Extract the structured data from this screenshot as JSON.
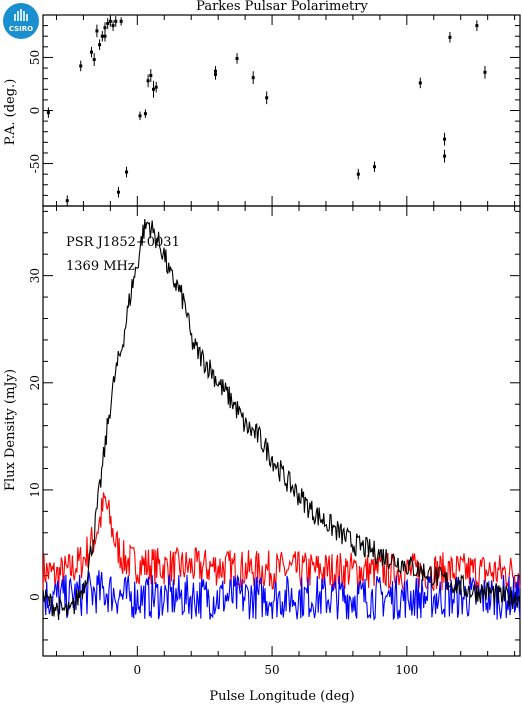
{
  "figure": {
    "title": "Parkes Pulsar Polarimetry",
    "logo_text": "CSIRO",
    "colors": {
      "total": "#000000",
      "linear": "#ff0000",
      "circular": "#0000ff",
      "logo_bg": "#1a8fcf"
    }
  },
  "chart_data": [
    {
      "type": "scatter",
      "panel": "position-angle",
      "title": "Parkes Pulsar Polarimetry",
      "xlabel": "",
      "ylabel": "P.A. (deg.)",
      "xlim": [
        -35,
        142
      ],
      "ylim": [
        -90,
        90
      ],
      "yticks": [
        -50,
        0,
        50
      ],
      "points": [
        [
          -33,
          -2,
          5
        ],
        [
          -26,
          -85,
          5
        ],
        [
          -21,
          42,
          5
        ],
        [
          -17,
          55,
          5
        ],
        [
          -16,
          48,
          6
        ],
        [
          -15,
          75,
          6
        ],
        [
          -14,
          62,
          5
        ],
        [
          -13,
          70,
          5
        ],
        [
          -12,
          70,
          5
        ],
        [
          -12,
          78,
          5
        ],
        [
          -11,
          82,
          5
        ],
        [
          -10,
          84,
          5
        ],
        [
          -9,
          80,
          5
        ],
        [
          -8,
          84,
          5
        ],
        [
          -7,
          -77,
          5
        ],
        [
          -6,
          84,
          4
        ],
        [
          -4,
          -58,
          5
        ],
        [
          1,
          -5,
          4
        ],
        [
          3,
          -3,
          4
        ],
        [
          4,
          28,
          6
        ],
        [
          5,
          33,
          6
        ],
        [
          6,
          20,
          8
        ],
        [
          7,
          22,
          5
        ],
        [
          29,
          37,
          5
        ],
        [
          29,
          34,
          5
        ],
        [
          37,
          49,
          5
        ],
        [
          43,
          31,
          6
        ],
        [
          48,
          12,
          6
        ],
        [
          82,
          -60,
          5
        ],
        [
          88,
          -53,
          5
        ],
        [
          105,
          26,
          5
        ],
        [
          114,
          -27,
          6
        ],
        [
          114,
          -43,
          6
        ],
        [
          116,
          69,
          5
        ],
        [
          126,
          80,
          5
        ],
        [
          129,
          36,
          6
        ]
      ]
    },
    {
      "type": "line",
      "panel": "profile",
      "xlabel": "Pulse Longitude (deg)",
      "ylabel": "Flux Density (mJy)",
      "xlim": [
        -35,
        142
      ],
      "ylim": [
        -5.5,
        36.5
      ],
      "xticks": [
        0,
        50,
        100
      ],
      "yticks": [
        0,
        10,
        20,
        30
      ],
      "annotations": [
        "PSR J1852−0031",
        "1369 MHz"
      ],
      "series": [
        {
          "key": "total",
          "x": [
            -35,
            -30,
            -25,
            -22,
            -20,
            -18,
            -16,
            -14,
            -12,
            -10,
            -8,
            -6,
            -4,
            -2,
            0,
            2,
            4,
            6,
            8,
            10,
            12,
            15,
            18,
            20,
            22,
            25,
            28,
            30,
            33,
            36,
            40,
            45,
            50,
            55,
            60,
            65,
            70,
            75,
            80,
            85,
            90,
            95,
            100,
            105,
            110,
            115,
            120,
            125,
            130,
            135,
            142
          ],
          "values": [
            0,
            -1,
            -1.5,
            0,
            1,
            3,
            6,
            10,
            14,
            18,
            21,
            23,
            26,
            29,
            31,
            34,
            35,
            34,
            33,
            32,
            30,
            29,
            27,
            24,
            23,
            22,
            21,
            20,
            19,
            18,
            16,
            15,
            13,
            11,
            9.5,
            8,
            7,
            6,
            5,
            4.5,
            4,
            3.5,
            3,
            2.5,
            2,
            1.5,
            1,
            0.5,
            0.5,
            0,
            0
          ]
        },
        {
          "key": "linear",
          "x": [
            -35,
            -30,
            -25,
            -20,
            -16,
            -14,
            -12,
            -10,
            -8,
            -5,
            0,
            5,
            10,
            20,
            30,
            40,
            60,
            80,
            100,
            120,
            142
          ],
          "values": [
            2.5,
            2.0,
            2.5,
            3.5,
            5.5,
            7.0,
            9.0,
            7.0,
            5.0,
            3.5,
            3.0,
            3.0,
            2.8,
            2.8,
            2.8,
            2.6,
            2.5,
            2.5,
            2.4,
            2.4,
            2.3
          ]
        },
        {
          "key": "circular",
          "x": [
            -35,
            -25,
            -15,
            -10,
            -5,
            0,
            5,
            15,
            40,
            80,
            120,
            142
          ],
          "values": [
            0,
            0,
            0.5,
            0.5,
            0,
            0,
            0,
            0,
            0,
            0,
            0,
            0
          ]
        }
      ]
    }
  ]
}
